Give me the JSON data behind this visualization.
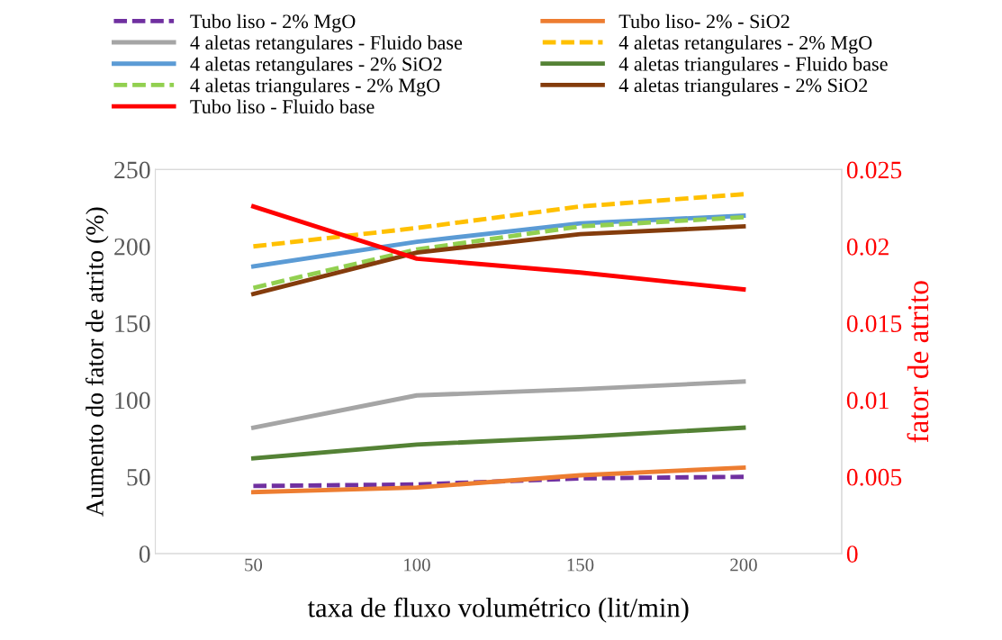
{
  "chart_data": {
    "type": "line",
    "xlabel": "taxa de fluxo volumétrico (lit/min)",
    "ylabel": "Aumento do fator de atrito (%)",
    "y2label": "fator de atrito",
    "categories": [
      "50",
      "100",
      "150",
      "200"
    ],
    "ylim": [
      0,
      250
    ],
    "yticks": [
      0,
      50,
      100,
      150,
      200,
      250
    ],
    "y2lim": [
      0,
      0.025
    ],
    "y2ticks": [
      {
        "value": 0,
        "label": "0"
      },
      0.005,
      0.01,
      0.015,
      0.02,
      0.025
    ],
    "grid": false,
    "legend": "top",
    "marker": "none",
    "series": [
      {
        "name": "Tubo liso - 2% MgO",
        "color": "#7030a0",
        "line_style": "dashed",
        "values": [
          44,
          45,
          49,
          50
        ]
      },
      {
        "name": "Tubo liso- 2% - SiO2",
        "color": "#ed7d31",
        "line_style": "solid",
        "values": [
          40,
          43,
          51,
          56
        ]
      },
      {
        "name": "4 aletas retangulares - Fluido base",
        "color": "#a5a5a5",
        "line_style": "solid",
        "values": [
          82,
          103,
          107,
          112
        ]
      },
      {
        "name": "4 aletas retangulares - 2% MgO",
        "color": "#ffc000",
        "line_style": "dashed",
        "values": [
          200,
          212,
          226,
          234
        ]
      },
      {
        "name": "4 aletas retangulares - 2% SiO2",
        "color": "#5b9bd5",
        "line_style": "solid",
        "values": [
          187,
          203,
          215,
          220
        ]
      },
      {
        "name": "4 aletas triangulares - Fluido base",
        "color": "#548235",
        "line_style": "solid",
        "values": [
          62,
          71,
          76,
          82
        ]
      },
      {
        "name": "4 aletas triangulares - 2% MgO",
        "color": "#92d050",
        "line_style": "dashed",
        "values": [
          173,
          198,
          213,
          219
        ]
      },
      {
        "name": "4 aletas triangulares - 2% SiO2",
        "color": "#843c0c",
        "line_style": "solid",
        "values": [
          169,
          196,
          208,
          213
        ]
      },
      {
        "name": "Tubo liso - Fluido base",
        "color": "#ff0000",
        "line_style": "solid",
        "axis": "y2",
        "values": [
          0.0226,
          0.0192,
          0.0183,
          0.0172
        ]
      }
    ]
  }
}
